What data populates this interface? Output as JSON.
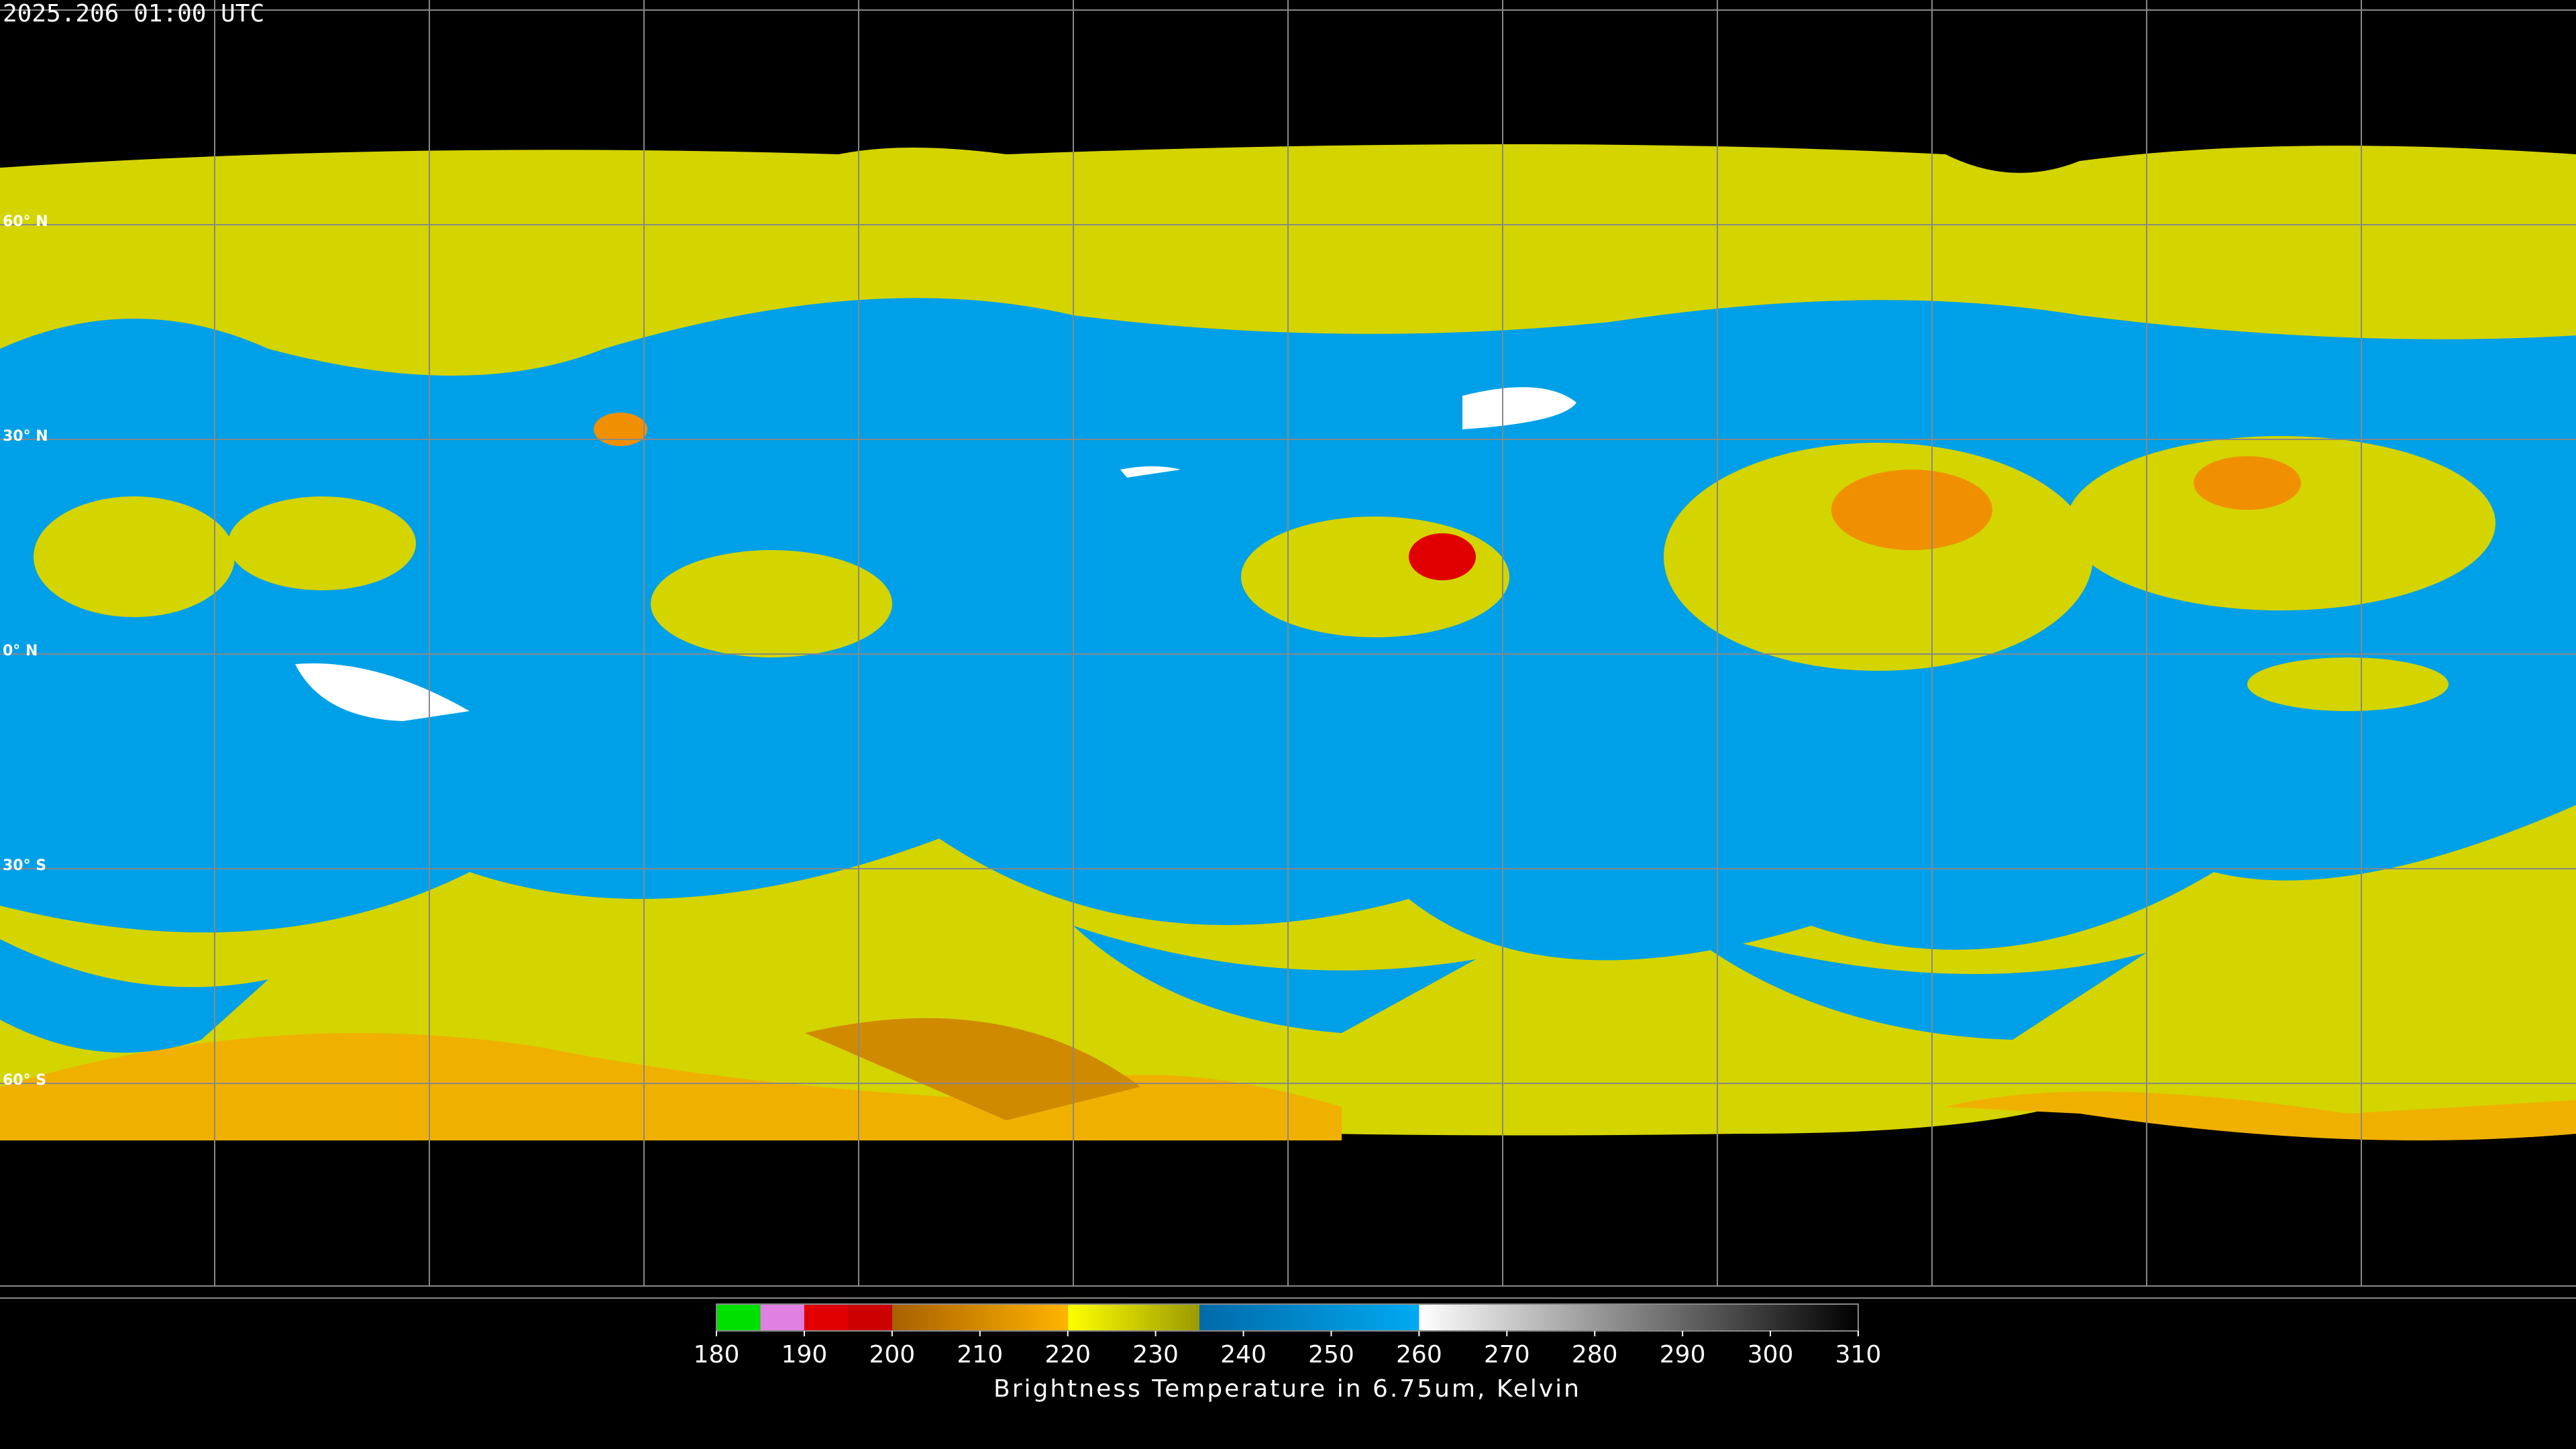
{
  "header": {
    "title": "2025.206 01:00 UTC"
  },
  "map": {
    "lat_labels": [
      "60° N",
      "30° N",
      "0° N",
      "30° S",
      "60° S"
    ]
  },
  "colorbar": {
    "range": [
      180,
      310
    ],
    "ticks": [
      180,
      190,
      200,
      210,
      220,
      230,
      240,
      250,
      260,
      270,
      280,
      290,
      300,
      310
    ],
    "label": "Brightness Temperature in 6.75um, Kelvin",
    "segments": [
      {
        "from": 180,
        "to": 185,
        "colors": [
          "#00e000",
          "#00e000"
        ]
      },
      {
        "from": 185,
        "to": 190,
        "colors": [
          "#e080e0",
          "#e080e0"
        ]
      },
      {
        "from": 190,
        "to": 195,
        "colors": [
          "#e00000",
          "#e00000"
        ]
      },
      {
        "from": 195,
        "to": 200,
        "colors": [
          "#cc0000",
          "#cc0000"
        ]
      },
      {
        "from": 200,
        "to": 220,
        "colors": [
          "#a86000",
          "#ffb400"
        ]
      },
      {
        "from": 220,
        "to": 235,
        "colors": [
          "#ffff00",
          "#9a9a00"
        ]
      },
      {
        "from": 235,
        "to": 260,
        "colors": [
          "#006aa8",
          "#00aaf0"
        ]
      },
      {
        "from": 260,
        "to": 310,
        "colors": [
          "#ffffff",
          "#000000"
        ]
      }
    ]
  }
}
